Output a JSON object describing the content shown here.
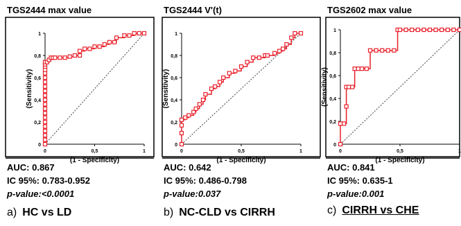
{
  "chart_data": [
    {
      "type": "line",
      "title": "TGS2444 max value",
      "xlabel": "(1 - Specificity)",
      "ylabel": "(Sensitivity)",
      "xlim": [
        0,
        1
      ],
      "ylim": [
        0,
        1
      ],
      "xticks": [
        "0",
        "0,5",
        "1"
      ],
      "yticks": [
        "0",
        "0,2",
        "0,4",
        "0,6",
        "0,8",
        "1"
      ],
      "series": [
        {
          "x": [
            0,
            0,
            0,
            0,
            0,
            0,
            0,
            0,
            0,
            0,
            0,
            0,
            0,
            0,
            0,
            0,
            0,
            0,
            0,
            0,
            0,
            0.02,
            0.04,
            0.06,
            0.08,
            0.1,
            0.15,
            0.2,
            0.25,
            0.3,
            0.35,
            0.35,
            0.4,
            0.45,
            0.5,
            0.55,
            0.6,
            0.65,
            0.7,
            0.72,
            0.8,
            0.85,
            0.9,
            0.95,
            1.0
          ],
          "y": [
            0,
            0.04,
            0.08,
            0.12,
            0.16,
            0.2,
            0.24,
            0.28,
            0.32,
            0.36,
            0.4,
            0.44,
            0.48,
            0.52,
            0.56,
            0.6,
            0.64,
            0.67,
            0.7,
            0.72,
            0.74,
            0.74,
            0.76,
            0.78,
            0.78,
            0.78,
            0.78,
            0.78,
            0.79,
            0.8,
            0.8,
            0.84,
            0.86,
            0.86,
            0.88,
            0.88,
            0.9,
            0.92,
            0.92,
            0.96,
            0.98,
            0.98,
            1.0,
            1.0,
            1.0
          ]
        },
        {
          "x": [
            0,
            1
          ],
          "y": [
            0,
            1
          ]
        }
      ],
      "annotations": {
        "auc": "AUC: 0.867",
        "ci": "IC 95%: 0.783-0.952",
        "p": "p-value:<0.0001"
      }
    },
    {
      "type": "line",
      "title": "TGS2444 V'(t)",
      "xlabel": "(1 - Specificity)",
      "ylabel": "(Sensitivity)",
      "xlim": [
        0,
        1
      ],
      "ylim": [
        0,
        1
      ],
      "xticks": [
        "0",
        "0,5",
        "1"
      ],
      "yticks": [
        "0",
        "0,2",
        "0,4",
        "0,6",
        "0,8",
        "1"
      ],
      "series": [
        {
          "x": [
            0,
            0,
            0,
            0,
            0.03,
            0.06,
            0.1,
            0.12,
            0.15,
            0.18,
            0.2,
            0.25,
            0.28,
            0.32,
            0.35,
            0.4,
            0.45,
            0.5,
            0.55,
            0.6,
            0.65,
            0.7,
            0.72,
            0.78,
            0.82,
            0.85,
            0.88,
            0.92,
            0.95,
            1.0
          ],
          "y": [
            0,
            0.1,
            0.17,
            0.22,
            0.24,
            0.26,
            0.29,
            0.32,
            0.36,
            0.4,
            0.45,
            0.5,
            0.52,
            0.56,
            0.6,
            0.64,
            0.66,
            0.7,
            0.74,
            0.78,
            0.78,
            0.8,
            0.8,
            0.82,
            0.84,
            0.86,
            0.9,
            0.96,
            1.0,
            1.0
          ]
        },
        {
          "x": [
            0,
            1
          ],
          "y": [
            0,
            1
          ]
        }
      ],
      "annotations": {
        "auc": "AUC:  0.642",
        "ci": "IC 95%: 0.486-0.798",
        "p": "p-value:0.037"
      }
    },
    {
      "type": "line",
      "title": "TGS2602 max value",
      "xlabel": "(1 - Specificity)",
      "ylabel": "(Sensitivity)",
      "xlim": [
        0,
        1
      ],
      "ylim": [
        0,
        1
      ],
      "xticks": [
        "0",
        "0,5",
        "1"
      ],
      "yticks": [
        "0",
        "0,2",
        "0,4",
        "0,6",
        "0,8",
        "1"
      ],
      "series": [
        {
          "x": [
            0,
            0,
            0.03,
            0.05,
            0.05,
            0.07,
            0.1,
            0.12,
            0.15,
            0.18,
            0.22,
            0.25,
            0.3,
            0.35,
            0.4,
            0.45,
            0.48,
            0.5,
            0.55,
            0.6,
            0.65,
            0.7,
            0.75,
            0.8,
            0.85,
            0.9,
            0.95,
            1.0
          ],
          "y": [
            0,
            0.18,
            0.18,
            0.33,
            0.5,
            0.5,
            0.5,
            0.66,
            0.66,
            0.66,
            0.66,
            0.82,
            0.82,
            0.82,
            0.82,
            0.82,
            1.0,
            1.0,
            1.0,
            1.0,
            1.0,
            1.0,
            1.0,
            1.0,
            1.0,
            1.0,
            1.0,
            1.0
          ]
        },
        {
          "x": [
            0,
            1
          ],
          "y": [
            0,
            1
          ]
        }
      ],
      "annotations": {
        "auc": "AUC: 0.841",
        "ci": "IC 95%: 0.635-1",
        "p": "p-value:0.001"
      }
    }
  ],
  "captions": [
    {
      "tag": "a)",
      "text": "HC vs LD"
    },
    {
      "tag": "b)",
      "text": "NC-CLD vs CIRRH"
    },
    {
      "tag": "c)",
      "text": "CIRRH vs CHE"
    }
  ],
  "colors": {
    "roc": "#e8202a",
    "reference": "#404040"
  }
}
